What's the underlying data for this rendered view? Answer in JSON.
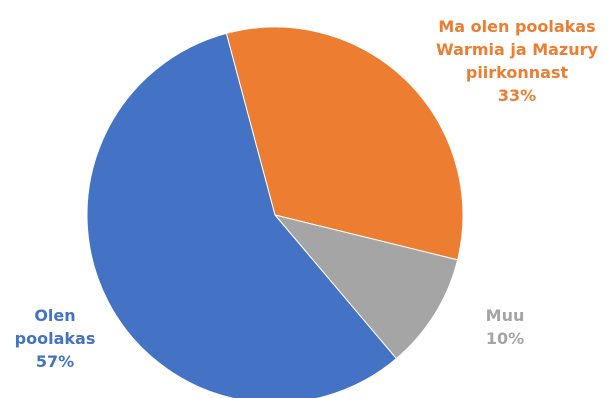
{
  "chart_data": {
    "type": "pie",
    "title": "",
    "slices": [
      {
        "label_lines": [
          "Ma olen poolakas",
          "Warmia ja Mazury",
          "piirkonnast"
        ],
        "percent_label": "33%",
        "value": 33,
        "color": "#ED7D31"
      },
      {
        "label_lines": [
          "Muu"
        ],
        "percent_label": "10%",
        "value": 10,
        "color": "#A5A5A5"
      },
      {
        "label_lines": [
          "Olen",
          "poolakas"
        ],
        "percent_label": "57%",
        "value": 57,
        "color": "#4472C4"
      }
    ],
    "start_angle_deg": -15,
    "direction": "clockwise"
  }
}
